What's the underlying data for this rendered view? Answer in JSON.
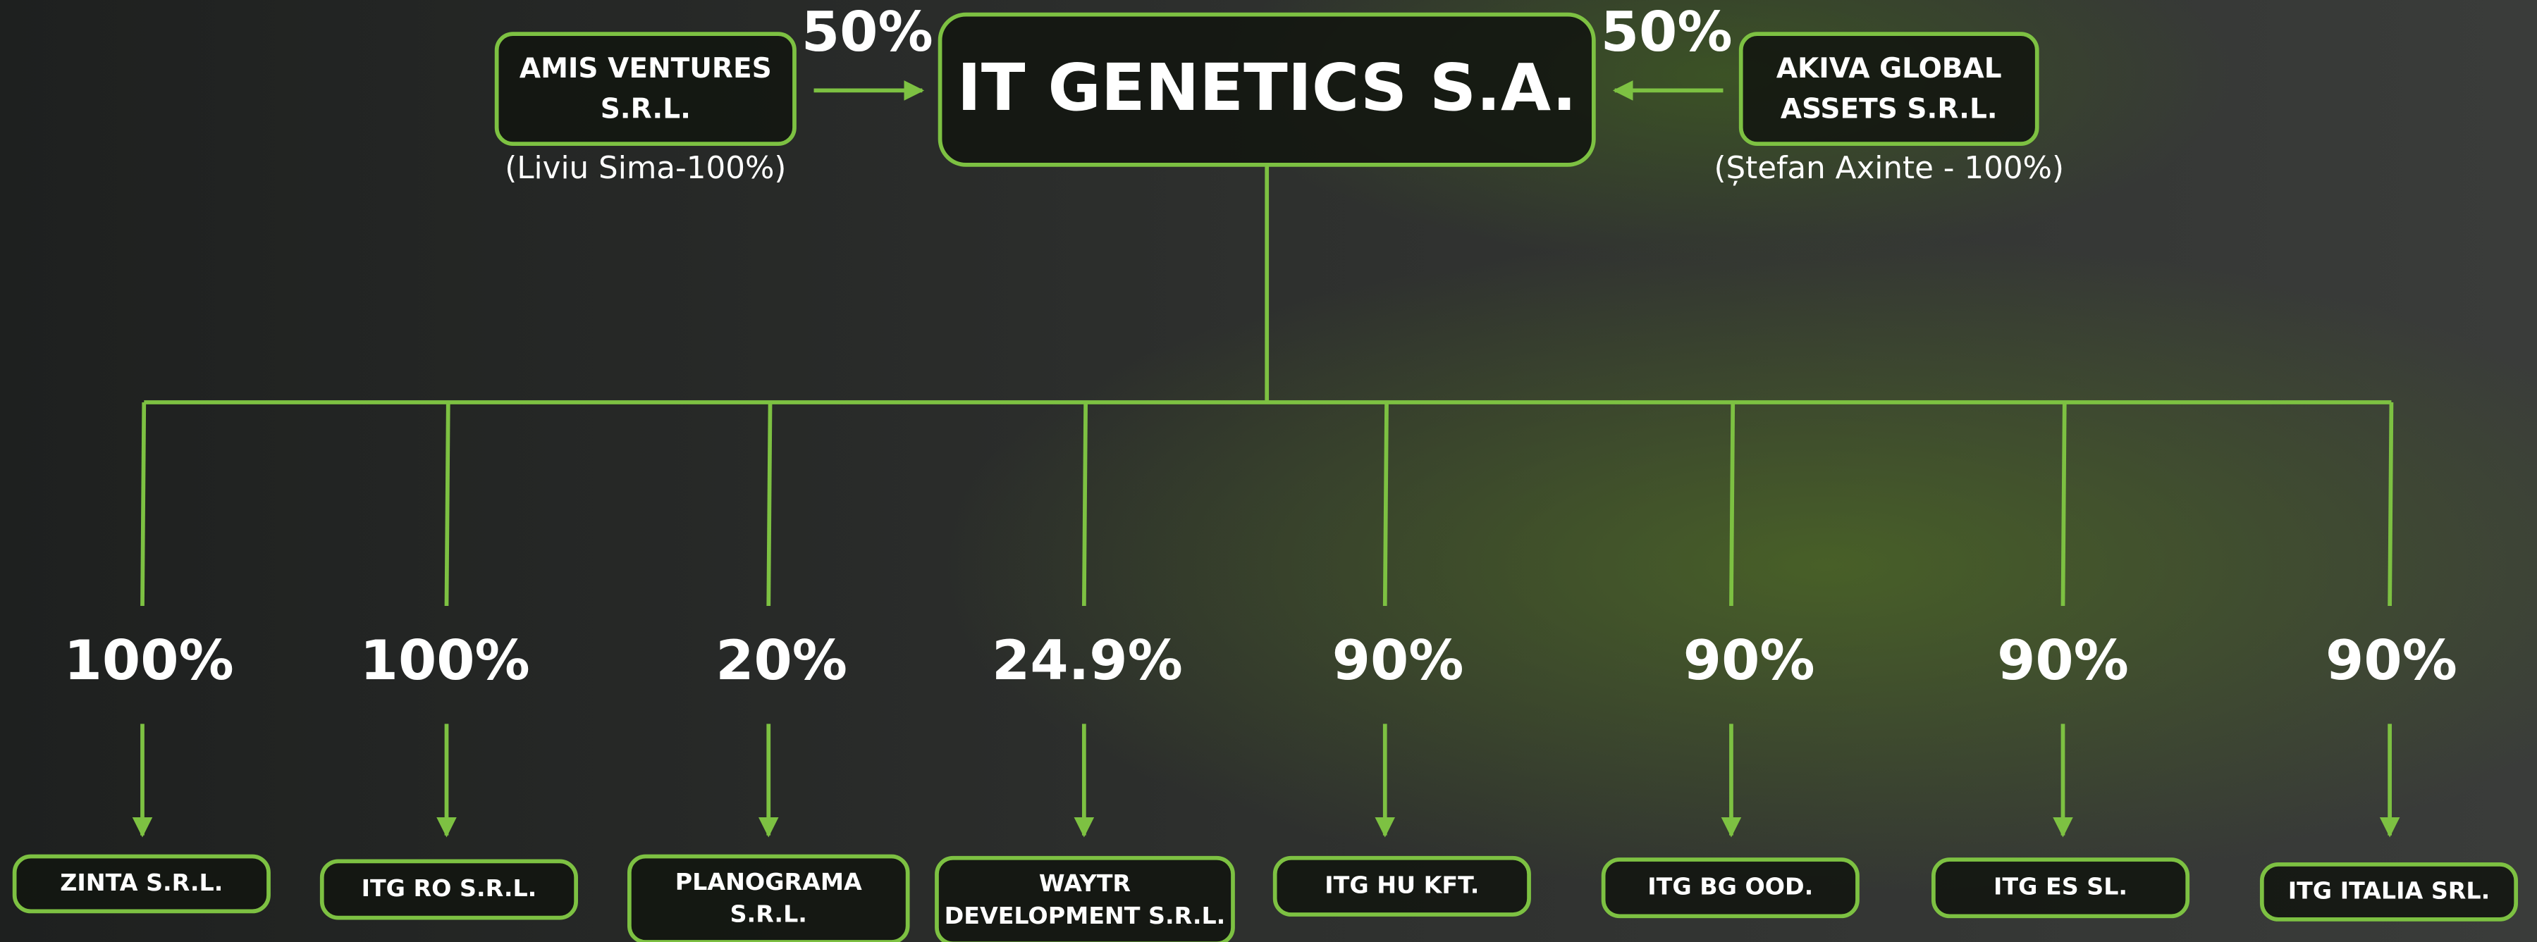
{
  "parent": {
    "name": "IT GENETICS S.A."
  },
  "shareholders": [
    {
      "name": [
        "AMIS VENTURES",
        "S.R.L."
      ],
      "share": "50%",
      "owner": "(Liviu Sima-100%)"
    },
    {
      "name": [
        "AKIVA GLOBAL",
        "ASSETS S.R.L."
      ],
      "share": "50%",
      "owner": "(Ștefan Axinte - 100%)"
    }
  ],
  "subsidiaries": [
    {
      "share": "100%",
      "name": [
        "ZINTA S.R.L."
      ]
    },
    {
      "share": "100%",
      "name": [
        "ITG RO S.R.L."
      ]
    },
    {
      "share": "20%",
      "name": [
        "PLANOGRAMA",
        "S.R.L."
      ]
    },
    {
      "share": "24.9%",
      "name": [
        "WAYTR",
        "DEVELOPMENT S.R.L."
      ]
    },
    {
      "share": "90%",
      "name": [
        "ITG HU KFT."
      ]
    },
    {
      "share": "90%",
      "name": [
        "ITG BG OOD."
      ]
    },
    {
      "share": "90%",
      "name": [
        "ITG ES SL."
      ]
    },
    {
      "share": "90%",
      "name": [
        "ITG ITALIA SRL."
      ]
    }
  ]
}
